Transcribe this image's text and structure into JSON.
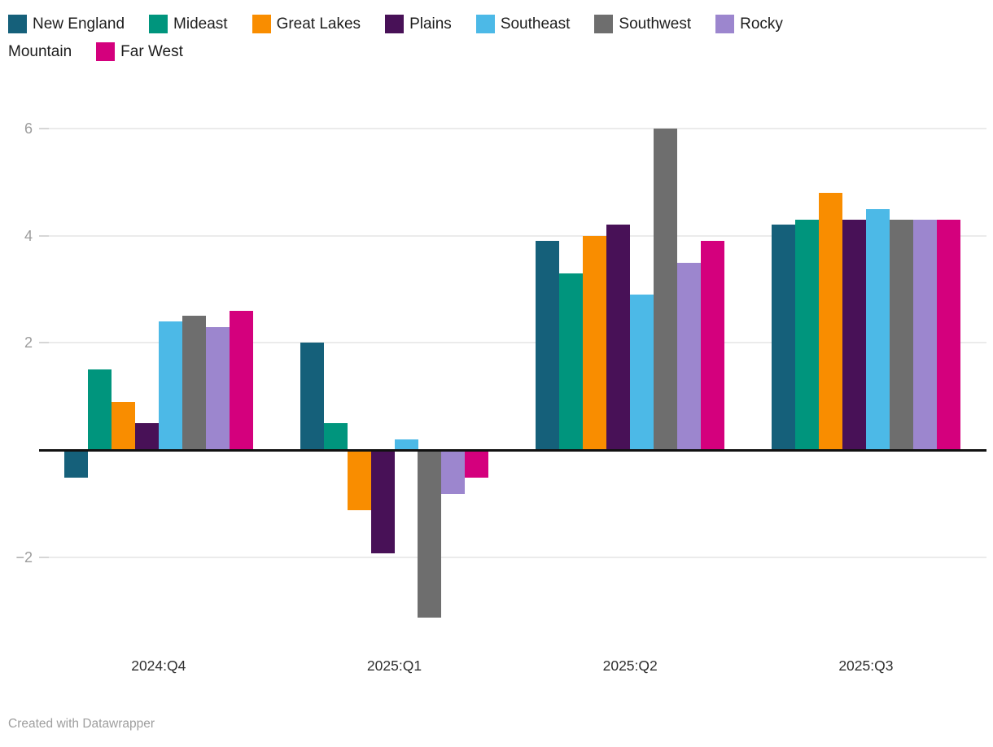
{
  "chart_data": {
    "type": "bar",
    "title": "",
    "xlabel": "",
    "ylabel": "",
    "categories": [
      "2024:Q4",
      "2025:Q1",
      "2025:Q2",
      "2025:Q3"
    ],
    "series": [
      {
        "name": "New England",
        "color": "#15607a",
        "values": [
          -0.5,
          2.0,
          3.9,
          4.2
        ]
      },
      {
        "name": "Mideast",
        "color": "#00957d",
        "values": [
          1.5,
          0.5,
          3.3,
          4.3
        ]
      },
      {
        "name": "Great Lakes",
        "color": "#f98d00",
        "values": [
          0.9,
          -1.1,
          4.0,
          4.8
        ]
      },
      {
        "name": "Plains",
        "color": "#481157",
        "values": [
          0.5,
          -1.9,
          4.2,
          4.3
        ]
      },
      {
        "name": "Southeast",
        "color": "#4cb9e7",
        "values": [
          2.4,
          0.2,
          2.9,
          4.5
        ]
      },
      {
        "name": "Southwest",
        "color": "#6e6e6e",
        "values": [
          2.5,
          -3.1,
          6.0,
          4.3
        ]
      },
      {
        "name": "Rocky Mountain",
        "color": "#9c86ce",
        "values": [
          2.3,
          -0.8,
          3.5,
          4.3
        ]
      },
      {
        "name": "Far West",
        "color": "#d4007d",
        "values": [
          2.6,
          -0.5,
          3.9,
          4.3
        ]
      }
    ],
    "yticks": [
      {
        "value": 6,
        "label": "6"
      },
      {
        "value": 4,
        "label": "4"
      },
      {
        "value": 2,
        "label": "2"
      },
      {
        "value": -2,
        "label": "−2"
      }
    ],
    "ylim": [
      -3.3,
      6.4
    ],
    "zero_baseline": true,
    "grid": "horizontal",
    "legend_position": "top"
  },
  "legend": {
    "rows": [
      [
        {
          "swatch": "#15607a",
          "text": "New England"
        },
        {
          "swatch": "#00957d",
          "text": "Mideast"
        },
        {
          "swatch": "#f98d00",
          "text": "Great Lakes"
        },
        {
          "swatch": "#481157",
          "text": "Plains"
        },
        {
          "swatch": "#4cb9e7",
          "text": "Southeast"
        },
        {
          "swatch": "#6e6e6e",
          "text": "Southwest"
        },
        {
          "swatch": "#9c86ce",
          "text": "Rocky"
        }
      ],
      [
        {
          "swatch": null,
          "text": "Mountain"
        },
        {
          "swatch": "#d4007d",
          "text": "Far West"
        }
      ]
    ]
  },
  "footer": {
    "attribution": "Created with Datawrapper"
  }
}
